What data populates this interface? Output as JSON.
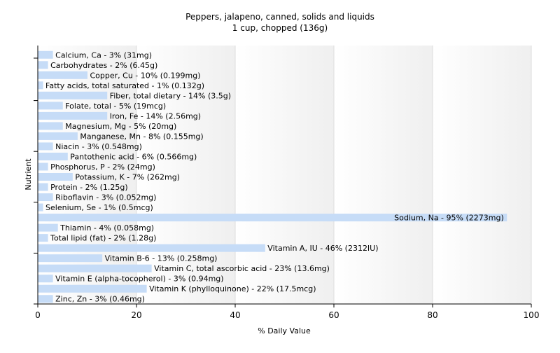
{
  "chart_data": {
    "type": "bar",
    "orientation": "horizontal",
    "title": "Peppers, jalapeno, canned, solids and liquids",
    "subtitle": "1 cup, chopped (136g)",
    "xlabel": "% Daily Value",
    "ylabel": "Nutrient",
    "xlim": [
      0,
      100
    ],
    "xticks": [
      0,
      20,
      40,
      60,
      80,
      100
    ],
    "grid": true,
    "bar_color": "#c6dcf7",
    "categories": [
      "Calcium, Ca",
      "Carbohydrates",
      "Copper, Cu",
      "Fatty acids, total saturated",
      "Fiber, total dietary",
      "Folate, total",
      "Iron, Fe",
      "Magnesium, Mg",
      "Manganese, Mn",
      "Niacin",
      "Pantothenic acid",
      "Phosphorus, P",
      "Potassium, K",
      "Protein",
      "Riboflavin",
      "Selenium, Se",
      "Sodium, Na",
      "Thiamin",
      "Total lipid (fat)",
      "Vitamin A, IU",
      "Vitamin B-6",
      "Vitamin C, total ascorbic acid",
      "Vitamin E (alpha-tocopherol)",
      "Vitamin K (phylloquinone)",
      "Zinc, Zn"
    ],
    "values": [
      3,
      2,
      10,
      1,
      14,
      5,
      14,
      5,
      8,
      3,
      6,
      2,
      7,
      2,
      3,
      1,
      95,
      4,
      2,
      46,
      13,
      23,
      3,
      22,
      3
    ],
    "labels": [
      "Calcium, Ca - 3% (31mg)",
      "Carbohydrates - 2% (6.45g)",
      "Copper, Cu - 10% (0.199mg)",
      "Fatty acids, total saturated - 1% (0.132g)",
      "Fiber, total dietary - 14% (3.5g)",
      "Folate, total - 5% (19mcg)",
      "Iron, Fe - 14% (2.56mg)",
      "Magnesium, Mg - 5% (20mg)",
      "Manganese, Mn - 8% (0.155mg)",
      "Niacin - 3% (0.548mg)",
      "Pantothenic acid - 6% (0.566mg)",
      "Phosphorus, P - 2% (24mg)",
      "Potassium, K - 7% (262mg)",
      "Protein - 2% (1.25g)",
      "Riboflavin - 3% (0.052mg)",
      "Selenium, Se - 1% (0.5mcg)",
      "Sodium, Na - 95% (2273mg)",
      "Thiamin - 4% (0.058mg)",
      "Total lipid (fat) - 2% (1.28g)",
      "Vitamin A, IU - 46% (2312IU)",
      "Vitamin B-6 - 13% (0.258mg)",
      "Vitamin C, total ascorbic acid - 23% (13.6mg)",
      "Vitamin E (alpha-tocopherol) - 3% (0.94mg)",
      "Vitamin K (phylloquinone) - 22% (17.5mcg)",
      "Zinc, Zn - 3% (0.46mg)"
    ]
  }
}
